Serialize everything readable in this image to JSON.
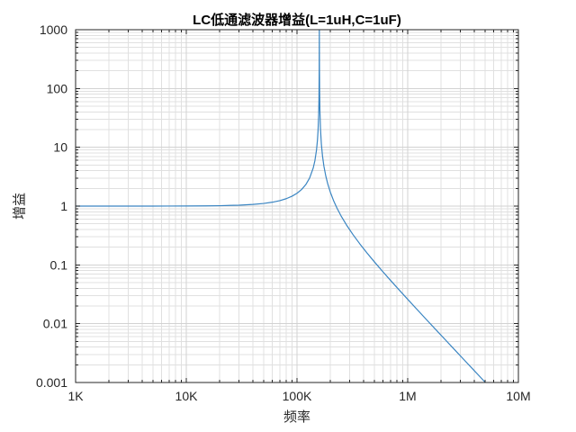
{
  "chart_data": {
    "type": "line",
    "title": "LC低通滤波器增益(L=1uH,C=1uF)",
    "xlabel": "频率",
    "ylabel": "增益",
    "x_scale": "log",
    "y_scale": "log",
    "xlim": [
      1000,
      10000000
    ],
    "ylim": [
      0.001,
      1000
    ],
    "grid": true,
    "minor_grid": true,
    "legend": "none",
    "x_ticks": [
      {
        "value": 1000,
        "label": "1K"
      },
      {
        "value": 10000,
        "label": "10K"
      },
      {
        "value": 100000,
        "label": "100K"
      },
      {
        "value": 1000000,
        "label": "1M"
      },
      {
        "value": 10000000,
        "label": "10M"
      }
    ],
    "y_ticks": [
      {
        "value": 1000,
        "label": "1000"
      },
      {
        "value": 100,
        "label": "100"
      },
      {
        "value": 10,
        "label": "10"
      },
      {
        "value": 1,
        "label": "1"
      },
      {
        "value": 0.1,
        "label": "0.1"
      },
      {
        "value": 0.01,
        "label": "0.01"
      },
      {
        "value": 0.001,
        "label": "0.001"
      }
    ],
    "colors": {
      "line": "#3a85c2",
      "axis": "#262626",
      "grid": "#d2d2d2",
      "minor_grid": "#e0e0e0",
      "title": "#000000",
      "background": "#ffffff"
    },
    "series": [
      {
        "name": "增益",
        "x": [
          1000,
          1500,
          2000,
          3000,
          5000,
          7000,
          10000,
          15000,
          20000,
          30000,
          40000,
          50000,
          60000,
          70000,
          80000,
          90000,
          100000,
          110000,
          120000,
          130000,
          140000,
          145000,
          150000,
          153000,
          155000,
          157000,
          158000,
          158800,
          159155,
          159500,
          160000,
          161000,
          163000,
          166000,
          170000,
          175000,
          182000,
          190000,
          200000,
          215000,
          230000,
          250000,
          280000,
          320000,
          370000,
          430000,
          500000,
          600000,
          700000,
          850000,
          1000000,
          1200000,
          1500000,
          1800000,
          2200000,
          2700000,
          3300000,
          4000000,
          4500000,
          5000000
        ],
        "y": [
          1.00004,
          1.00009,
          1.00016,
          1.00036,
          1.00099,
          1.00194,
          1.00396,
          1.00896,
          1.01604,
          1.03684,
          1.06742,
          1.1095,
          1.16567,
          1.23985,
          1.33808,
          1.47011,
          1.65231,
          1.91456,
          2.31763,
          3.00507,
          4.42042,
          5.88346,
          8.94967,
          13.184,
          19.4054,
          37.1789,
          69.1516,
          224.466,
          1000,
          230.36,
          93.914,
          42.8816,
          20.449,
          11.3806,
          7.0958,
          4.7841,
          3.2501,
          2.352,
          1.72671,
          1.21228,
          0.918766,
          0.681479,
          0.477303,
          0.328667,
          0.227035,
          0.158741,
          0.112745,
          0.0756871,
          0.0545125,
          0.0363331,
          0.0259892,
          0.0179055,
          0.0113862,
          0.00787958,
          0.00526107,
          0.00348678,
          0.00233144,
          0.00158565,
          0.00125245,
          0.00101424
        ]
      }
    ]
  }
}
